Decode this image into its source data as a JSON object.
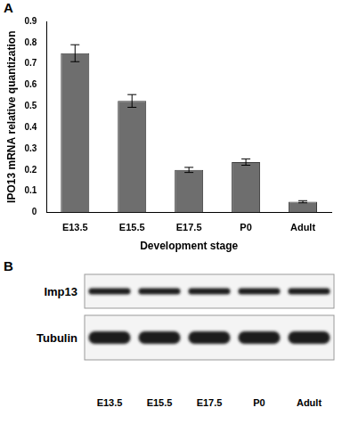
{
  "chart_data": {
    "type": "bar",
    "panel_label": "A",
    "categories": [
      "E13.5",
      "E15.5",
      "E17.5",
      "P0",
      "Adult"
    ],
    "values": [
      0.75,
      0.525,
      0.2,
      0.237,
      0.05
    ],
    "errors": [
      0.04,
      0.03,
      0.012,
      0.015,
      0.005
    ],
    "color": "#6e6e6e",
    "x_label": "Development stage",
    "y_label": "IPO13 mRNA relative quantization",
    "ylim": [
      0,
      0.9
    ],
    "yticks": [
      0,
      0.1,
      0.2,
      0.3,
      0.4,
      0.5,
      0.6,
      0.7,
      0.8,
      0.9
    ],
    "grid": false
  },
  "blot": {
    "panel_label": "B",
    "rows": [
      "Imp13",
      "Tubulin"
    ],
    "lanes": [
      "E13.5",
      "E15.5",
      "E17.5",
      "P0",
      "Adult"
    ]
  }
}
